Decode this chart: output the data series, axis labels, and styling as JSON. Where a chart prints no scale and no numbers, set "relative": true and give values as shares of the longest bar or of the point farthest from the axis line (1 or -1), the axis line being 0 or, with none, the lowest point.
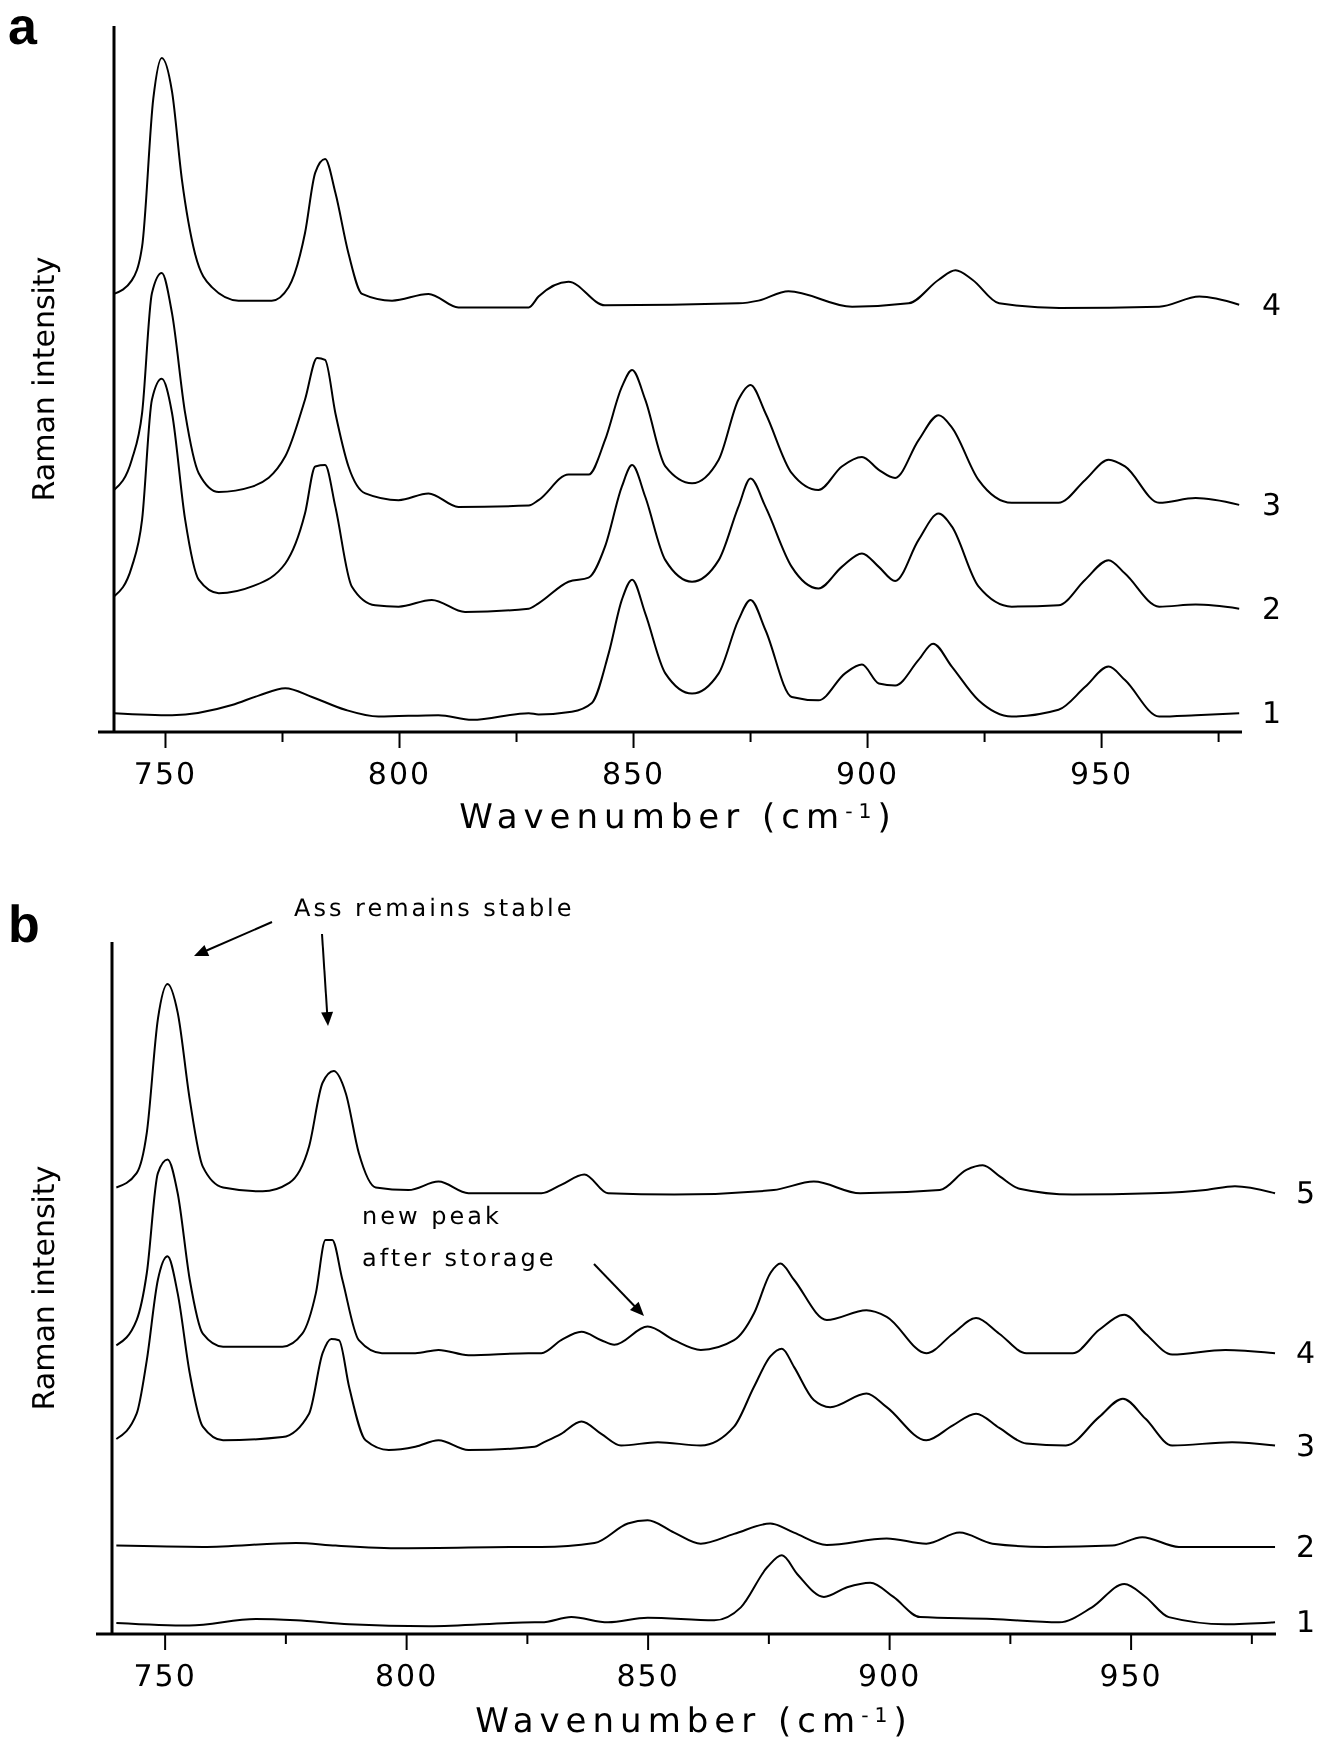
{
  "chart_data": [
    {
      "type": "line",
      "title": "a",
      "xlabel": "Wavenumber (cm$^{-1}$)",
      "ylabel": "Raman intensity",
      "relative": true,
      "xlim": [
        739,
        980
      ],
      "xticks": [
        750,
        {
          "value": 775,
          "label": null
        },
        800,
        {
          "value": 825,
          "label": null
        },
        850,
        {
          "value": 875,
          "label": null
        },
        900,
        {
          "value": 925,
          "label": null
        },
        950,
        {
          "value": 975,
          "label": null
        }
      ],
      "series": [
        {
          "name": "4",
          "color": "#000000",
          "x": [
            739,
            742.8,
            745,
            747.4,
            749.2,
            751.4,
            753.5,
            756.3,
            759.9,
            765.6,
            772.7,
            776.3,
            779.8,
            782,
            784.1,
            786.3,
            789.1,
            792,
            798.4,
            806.2,
            812.6,
            827.6,
            829.7,
            836.1,
            843.9,
            872.4,
            876.7,
            883.1,
            896.7,
            908.8,
            915.2,
            918.8,
            922.4,
            928.1,
            941,
            962.3,
            970.9,
            979.4
          ],
          "values": [
            0.65,
            0.67,
            0.72,
            0.94,
            1.0,
            0.95,
            0.82,
            0.71,
            0.66,
            0.64,
            0.64,
            0.66,
            0.74,
            0.83,
            0.85,
            0.8,
            0.71,
            0.65,
            0.64,
            0.65,
            0.63,
            0.63,
            0.646,
            0.668,
            0.633,
            0.636,
            0.64,
            0.654,
            0.631,
            0.636,
            0.671,
            0.685,
            0.671,
            0.636,
            0.629,
            0.631,
            0.646,
            0.634
          ]
        },
        {
          "name": "3",
          "color": "#000000",
          "x": [
            739,
            742.8,
            745,
            747.1,
            749.2,
            751.4,
            754.2,
            757.1,
            761.4,
            768.5,
            775.6,
            779.8,
            782.4,
            784.1,
            786.3,
            789.1,
            792.7,
            799.8,
            806.2,
            812.6,
            827.6,
            829.7,
            836.1,
            840.4,
            843.9,
            847.5,
            849.7,
            852.5,
            856.8,
            862.5,
            868.2,
            872.4,
            875,
            878.2,
            883.8,
            889.5,
            894.5,
            898.8,
            902.4,
            905.9,
            910.9,
            915.2,
            918,
            923.7,
            930.8,
            940.8,
            946.5,
            951.5,
            955,
            962.3,
            970.1,
            979.4
          ],
          "values": [
            0.359,
            0.404,
            0.473,
            0.651,
            0.681,
            0.621,
            0.473,
            0.384,
            0.356,
            0.364,
            0.409,
            0.493,
            0.555,
            0.552,
            0.473,
            0.394,
            0.354,
            0.344,
            0.354,
            0.334,
            0.336,
            0.344,
            0.382,
            0.382,
            0.433,
            0.512,
            0.537,
            0.493,
            0.394,
            0.369,
            0.404,
            0.493,
            0.515,
            0.473,
            0.384,
            0.359,
            0.394,
            0.408,
            0.389,
            0.377,
            0.433,
            0.47,
            0.452,
            0.374,
            0.34,
            0.34,
            0.374,
            0.404,
            0.394,
            0.34,
            0.347,
            0.337
          ]
        },
        {
          "name": "2",
          "color": "#000000",
          "x": [
            739,
            742.8,
            745,
            747.1,
            749.2,
            751.4,
            754.2,
            757.1,
            761.4,
            768.5,
            775.6,
            779.8,
            782,
            784.1,
            786.3,
            789.8,
            794.8,
            799.8,
            806.9,
            814,
            827.6,
            829.7,
            836.1,
            840.4,
            843.9,
            847.5,
            849.7,
            852.5,
            856.8,
            862.5,
            868.2,
            872.4,
            875,
            878.2,
            883.8,
            889.5,
            894.5,
            898.8,
            902.4,
            905.9,
            910.9,
            915.2,
            918,
            923.7,
            930.8,
            940.8,
            946.5,
            951.5,
            955,
            962.3,
            970.1,
            979.4
          ],
          "values": [
            0.201,
            0.245,
            0.315,
            0.493,
            0.524,
            0.473,
            0.315,
            0.226,
            0.206,
            0.216,
            0.25,
            0.324,
            0.394,
            0.396,
            0.334,
            0.216,
            0.188,
            0.186,
            0.196,
            0.178,
            0.183,
            0.191,
            0.223,
            0.229,
            0.275,
            0.364,
            0.396,
            0.349,
            0.255,
            0.223,
            0.255,
            0.334,
            0.376,
            0.334,
            0.245,
            0.213,
            0.245,
            0.265,
            0.245,
            0.224,
            0.285,
            0.324,
            0.305,
            0.216,
            0.186,
            0.188,
            0.226,
            0.255,
            0.235,
            0.186,
            0.189,
            0.183
          ]
        },
        {
          "name": "1",
          "color": "#000000",
          "x": [
            739,
            751.4,
            764.2,
            769.9,
            775.6,
            781.3,
            788.4,
            795.5,
            808.3,
            815.5,
            827.6,
            829.7,
            836.8,
            841.1,
            844.7,
            847.5,
            849.7,
            852.5,
            856.8,
            862.5,
            868.2,
            872.4,
            875,
            878.2,
            883.8,
            889.5,
            895.2,
            898.8,
            902.4,
            905.9,
            910.9,
            914,
            918,
            923.7,
            930.8,
            940.8,
            946.5,
            951.5,
            955,
            962.3,
            970.1,
            979.4
          ],
          "values": [
            0.028,
            0.025,
            0.04,
            0.054,
            0.065,
            0.052,
            0.033,
            0.023,
            0.025,
            0.018,
            0.028,
            0.026,
            0.03,
            0.043,
            0.117,
            0.196,
            0.226,
            0.176,
            0.087,
            0.057,
            0.087,
            0.166,
            0.196,
            0.151,
            0.052,
            0.047,
            0.087,
            0.1,
            0.072,
            0.069,
            0.107,
            0.131,
            0.097,
            0.047,
            0.023,
            0.033,
            0.067,
            0.097,
            0.077,
            0.023,
            0.025,
            0.028
          ]
        }
      ]
    },
    {
      "type": "line",
      "title": "b",
      "xlabel": "Wavenumber (cm$^{-1}$)",
      "ylabel": "Raman intensity",
      "relative": true,
      "xlim": [
        739,
        980
      ],
      "xticks": [
        750,
        {
          "value": 775,
          "label": null
        },
        800,
        {
          "value": 825,
          "label": null
        },
        850,
        {
          "value": 875,
          "label": null
        },
        900,
        {
          "value": 925,
          "label": null
        },
        950,
        {
          "value": 975,
          "label": null
        }
      ],
      "annotations": [
        "Ass remains stable",
        "new peak after storage"
      ],
      "series": [
        {
          "name": "5",
          "color": "#000000",
          "x": [
            739.9,
            744.1,
            746.2,
            748.5,
            750.5,
            752.6,
            755.1,
            757.8,
            762,
            770.2,
            775.7,
            779.8,
            782.6,
            784.9,
            787.4,
            790.1,
            793.6,
            800.4,
            806.6,
            812.8,
            826.5,
            827.9,
            832,
            836.8,
            841.7,
            855.4,
            876,
            884.3,
            893.9,
            910.4,
            915.9,
            919.3,
            922.8,
            926.9,
            937.9,
            954.4,
            965.4,
            971.5,
            979.8
          ],
          "values": [
            0.687,
            0.709,
            0.771,
            0.946,
            1,
            0.956,
            0.822,
            0.719,
            0.687,
            0.681,
            0.694,
            0.75,
            0.848,
            0.866,
            0.832,
            0.74,
            0.687,
            0.683,
            0.696,
            0.678,
            0.678,
            0.678,
            0.691,
            0.707,
            0.678,
            0.676,
            0.683,
            0.696,
            0.678,
            0.683,
            0.714,
            0.721,
            0.704,
            0.685,
            0.676,
            0.678,
            0.683,
            0.689,
            0.678
          ]
        },
        {
          "name": "4",
          "color": "#000000",
          "x": [
            739.9,
            744.1,
            746.2,
            748.5,
            750.5,
            752.6,
            755.1,
            757.8,
            762,
            774.3,
            778.4,
            781.2,
            783.2,
            784.6,
            786.7,
            790.1,
            794.9,
            801.8,
            806.6,
            812.8,
            825.2,
            827.9,
            832,
            836.2,
            840.3,
            843,
            849.9,
            855.4,
            860.9,
            867.8,
            871.9,
            875.3,
            877.4,
            880.2,
            887,
            895.2,
            899.4,
            907.6,
            913.1,
            917.9,
            922.7,
            928.3,
            937.9,
            943.4,
            948.6,
            953,
            958.5,
            969.5,
            979.8
          ],
          "values": [
            0.444,
            0.483,
            0.555,
            0.709,
            0.73,
            0.678,
            0.545,
            0.462,
            0.442,
            0.442,
            0.462,
            0.524,
            0.606,
            0.606,
            0.545,
            0.452,
            0.432,
            0.432,
            0.437,
            0.429,
            0.432,
            0.432,
            0.452,
            0.465,
            0.452,
            0.445,
            0.473,
            0.452,
            0.437,
            0.452,
            0.493,
            0.555,
            0.57,
            0.545,
            0.483,
            0.498,
            0.488,
            0.432,
            0.462,
            0.486,
            0.462,
            0.432,
            0.432,
            0.468,
            0.491,
            0.462,
            0.43,
            0.437,
            0.432
          ]
        },
        {
          "name": "3",
          "color": "#000000",
          "x": [
            739.9,
            744.1,
            746.2,
            748.5,
            750.5,
            752.6,
            755.1,
            757.8,
            762,
            774.3,
            779.8,
            782.6,
            784.4,
            786,
            788.1,
            791.5,
            796.3,
            801.8,
            806.6,
            812.8,
            826.5,
            827.9,
            832,
            836.2,
            840.3,
            844.4,
            852,
            860.9,
            867.8,
            871.9,
            875.3,
            877.7,
            880.2,
            884.3,
            887.7,
            895.2,
            899.4,
            907.6,
            913.1,
            917.9,
            922.7,
            928.3,
            936.5,
            943.4,
            948.3,
            953,
            958.5,
            970.9,
            979.8
          ],
          "values": [
            0.3,
            0.339,
            0.421,
            0.545,
            0.581,
            0.524,
            0.401,
            0.319,
            0.298,
            0.303,
            0.339,
            0.432,
            0.454,
            0.452,
            0.38,
            0.298,
            0.283,
            0.288,
            0.298,
            0.283,
            0.288,
            0.293,
            0.308,
            0.327,
            0.308,
            0.29,
            0.295,
            0.29,
            0.319,
            0.38,
            0.427,
            0.439,
            0.411,
            0.36,
            0.349,
            0.37,
            0.349,
            0.298,
            0.321,
            0.339,
            0.317,
            0.293,
            0.29,
            0.334,
            0.362,
            0.331,
            0.29,
            0.295,
            0.29
          ]
        },
        {
          "name": "2",
          "color": "#000000",
          "x": [
            739.9,
            757.8,
            777.1,
            785.3,
            799.1,
            826.5,
            827.9,
            838.9,
            845.8,
            849.9,
            855.4,
            860.9,
            867.8,
            875.3,
            880.2,
            887,
            899.4,
            907.6,
            914.5,
            921.3,
            932.3,
            946.1,
            952.3,
            959.9,
            979.8
          ],
          "values": [
            0.136,
            0.134,
            0.14,
            0.136,
            0.132,
            0.134,
            0.134,
            0.14,
            0.17,
            0.175,
            0.156,
            0.139,
            0.154,
            0.17,
            0.156,
            0.137,
            0.147,
            0.139,
            0.156,
            0.139,
            0.134,
            0.136,
            0.149,
            0.134,
            0.134
          ]
        },
        {
          "name": "1",
          "color": "#000000",
          "x": [
            739.9,
            755,
            768.8,
            777.1,
            788.1,
            804.6,
            826.5,
            827.9,
            834.1,
            841.7,
            849.9,
            863.7,
            869.2,
            874.7,
            877.7,
            880.9,
            886.4,
            891.2,
            896,
            900.8,
            906.3,
            921.3,
            935.1,
            941.9,
            948.6,
            953,
            957.8,
            969.5,
            979.8
          ],
          "values": [
            0.017,
            0.013,
            0.023,
            0.021,
            0.015,
            0.012,
            0.018,
            0.018,
            0.026,
            0.018,
            0.025,
            0.021,
            0.041,
            0.103,
            0.121,
            0.092,
            0.057,
            0.072,
            0.079,
            0.057,
            0.026,
            0.023,
            0.018,
            0.041,
            0.077,
            0.057,
            0.026,
            0.015,
            0.018
          ]
        }
      ]
    }
  ]
}
